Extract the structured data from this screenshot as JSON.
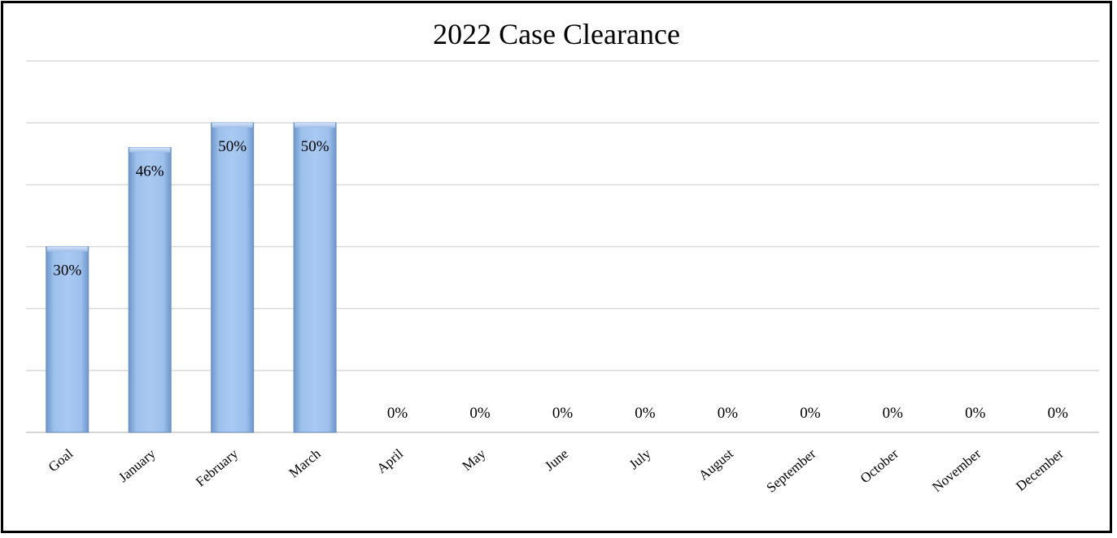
{
  "chart_data": {
    "type": "bar",
    "title": "2022 Case Clearance",
    "categories": [
      "Goal",
      "January",
      "February",
      "March",
      "April",
      "May",
      "June",
      "July",
      "August",
      "September",
      "October",
      "November",
      "December"
    ],
    "values": [
      30,
      46,
      50,
      50,
      0,
      0,
      0,
      0,
      0,
      0,
      0,
      0,
      0
    ],
    "data_labels": [
      "30%",
      "46%",
      "50%",
      "50%",
      "0%",
      "0%",
      "0%",
      "0%",
      "0%",
      "0%",
      "0%",
      "0%",
      "0%"
    ],
    "ylim": [
      0,
      60
    ],
    "ytick_step": 10,
    "grid": true,
    "legend": "none",
    "xlabel": "",
    "ylabel": "",
    "bar_color": "#8fb4e3",
    "bar_edge_color": "#6a8fbf"
  }
}
